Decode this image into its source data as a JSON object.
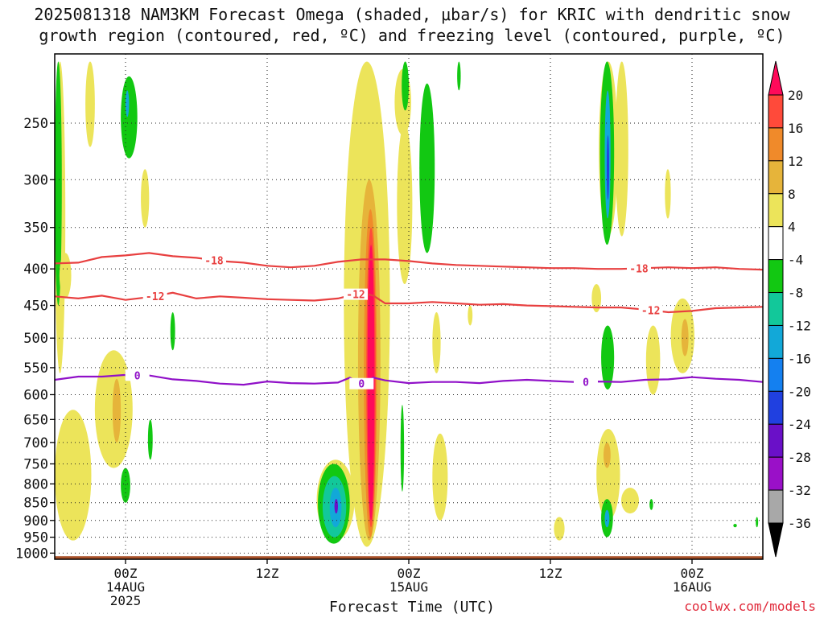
{
  "title_line1": "2025081318 NAM3KM Forecast Omega (shaded, μbar/s) for KRIC with dendritic snow",
  "title_line2": "growth region (contoured, red, ºC) and freezing level (contoured, purple, ºC)",
  "xlabel": "Forecast Time (UTC)",
  "credit": "coolwx.com/models",
  "chart_data": {
    "type": "heatmap",
    "title": "2025081318 NAM3KM Forecast Omega (shaded, μbar/s) for KRIC with dendritic snow growth region (contoured, red, ºC) and freezing level (contoured, purple, ºC)",
    "xlabel": "Forecast Time (UTC)",
    "ylabel": "",
    "x_unit": "forecast hour from 2025-08-13 18Z",
    "xlim": [
      0,
      60
    ],
    "ylim": [
      1020,
      200
    ],
    "y_scale": "log",
    "y_ticks": [
      250,
      300,
      350,
      400,
      450,
      500,
      550,
      600,
      650,
      700,
      750,
      800,
      850,
      900,
      950,
      1000
    ],
    "x_ticks": [
      {
        "hour": 6,
        "lines": [
          "00Z",
          "14AUG",
          "2025"
        ]
      },
      {
        "hour": 18,
        "lines": [
          "12Z"
        ]
      },
      {
        "hour": 30,
        "lines": [
          "00Z",
          "15AUG"
        ]
      },
      {
        "hour": 42,
        "lines": [
          "12Z"
        ]
      },
      {
        "hour": 54,
        "lines": [
          "00Z",
          "16AUG"
        ]
      }
    ],
    "grid": true,
    "colorbar": {
      "levels": [
        20,
        16,
        12,
        8,
        4,
        -4,
        -8,
        -12,
        -16,
        -20,
        -24,
        -28,
        -32,
        -36
      ],
      "colors": [
        "#ff0a5a",
        "#ff4a3a",
        "#f08a2a",
        "#e6b43a",
        "#ece45a",
        "#ffffff",
        "#12c812",
        "#12c89a",
        "#12a8d8",
        "#1480f0",
        "#2040e0",
        "#6a10c8",
        "#9a10c8",
        "#a8a8a8",
        "#000000"
      ]
    },
    "colors": {
      "dgz": "#e84040",
      "freezing": "#9010c8",
      "ground": "#a8522a",
      "yellow": "#ece45a",
      "gold": "#e6b43a",
      "orange": "#f08a2a",
      "red": "#ff4a3a",
      "magenta": "#ff0a5a",
      "green": "#12c812",
      "teal": "#12c89a",
      "cyan": "#12a8d8",
      "blue": "#1480f0",
      "navy": "#2040e0",
      "purple": "#6a10c8"
    },
    "contours": [
      {
        "name": "-18",
        "color": "#e84040",
        "label_at_hours": [
          13.5,
          49.5
        ],
        "x": [
          0,
          2,
          4,
          6,
          8,
          10,
          12,
          14,
          16,
          18,
          20,
          22,
          24,
          26,
          28,
          30,
          32,
          34,
          36,
          38,
          40,
          42,
          44,
          46,
          48,
          50,
          52,
          54,
          56,
          58,
          60
        ],
        "y": [
          393,
          392,
          385,
          383,
          380,
          384,
          386,
          390,
          392,
          396,
          398,
          396,
          391,
          388,
          388,
          390,
          393,
          395,
          396,
          397,
          398,
          399,
          399,
          400,
          400,
          399,
          398,
          399,
          398,
          400,
          401
        ]
      },
      {
        "name": "-12",
        "color": "#e84040",
        "label_at_hours": [
          8.5,
          25.5,
          50.5
        ],
        "x": [
          0,
          2,
          4,
          6,
          8,
          10,
          12,
          14,
          16,
          18,
          20,
          22,
          24,
          26,
          27,
          28,
          30,
          32,
          34,
          36,
          38,
          40,
          42,
          44,
          46,
          48,
          50,
          52,
          54,
          56,
          58,
          60
        ],
        "y": [
          437,
          440,
          436,
          442,
          438,
          432,
          440,
          437,
          439,
          441,
          442,
          443,
          440,
          432,
          436,
          447,
          447,
          445,
          447,
          449,
          448,
          450,
          451,
          452,
          453,
          453,
          456,
          460,
          458,
          454,
          453,
          452
        ]
      },
      {
        "name": "0",
        "color": "#9010c8",
        "label_at_hours": [
          7,
          26,
          45
        ],
        "x": [
          0,
          2,
          4,
          6,
          8,
          10,
          12,
          14,
          16,
          18,
          20,
          22,
          24,
          25,
          26,
          27,
          28,
          30,
          32,
          34,
          36,
          38,
          40,
          42,
          44,
          46,
          48,
          50,
          52,
          54,
          56,
          58,
          60
        ],
        "y": [
          572,
          566,
          566,
          563,
          564,
          571,
          574,
          579,
          581,
          575,
          578,
          579,
          577,
          568,
          579,
          568,
          573,
          578,
          576,
          576,
          578,
          574,
          572,
          574,
          576,
          575,
          576,
          572,
          571,
          567,
          570,
          572,
          576
        ]
      }
    ],
    "ground_level": 1010,
    "shaded_areas": [
      {
        "level": "yellow",
        "x": [
          0.0,
          0.9
        ],
        "p": [
          205,
          560
        ]
      },
      {
        "level": "green",
        "x": [
          0.0,
          0.6
        ],
        "p": [
          205,
          450
        ]
      },
      {
        "level": "yellow",
        "x": [
          2.6,
          3.4
        ],
        "p": [
          205,
          270
        ]
      },
      {
        "level": "green",
        "x": [
          5.6,
          7.0
        ],
        "p": [
          215,
          280
        ]
      },
      {
        "level": "cyan",
        "x": [
          6.0,
          6.3
        ],
        "p": [
          225,
          245
        ]
      },
      {
        "level": "yellow",
        "x": [
          7.3,
          8.0
        ],
        "p": [
          290,
          350
        ]
      },
      {
        "level": "yellow",
        "x": [
          0.4,
          1.4
        ],
        "p": [
          380,
          440
        ]
      },
      {
        "level": "green",
        "x": [
          9.8,
          10.2
        ],
        "p": [
          460,
          520
        ]
      },
      {
        "level": "yellow",
        "x": [
          3.4,
          6.6
        ],
        "p": [
          520,
          760
        ]
      },
      {
        "level": "gold",
        "x": [
          4.9,
          5.6
        ],
        "p": [
          570,
          700
        ]
      },
      {
        "level": "yellow",
        "x": [
          0.0,
          3.1
        ],
        "p": [
          630,
          960
        ]
      },
      {
        "level": "green",
        "x": [
          5.6,
          6.4
        ],
        "p": [
          760,
          850
        ]
      },
      {
        "level": "green",
        "x": [
          7.9,
          8.3
        ],
        "p": [
          650,
          740
        ]
      },
      {
        "level": "yellow",
        "x": [
          24.5,
          28.4
        ],
        "p": [
          205,
          980
        ]
      },
      {
        "level": "gold",
        "x": [
          25.7,
          27.6
        ],
        "p": [
          300,
          960
        ]
      },
      {
        "level": "orange",
        "x": [
          26.2,
          27.3
        ],
        "p": [
          330,
          950
        ]
      },
      {
        "level": "red",
        "x": [
          26.4,
          27.2
        ],
        "p": [
          350,
          920
        ]
      },
      {
        "level": "magenta",
        "x": [
          26.5,
          27.1
        ],
        "p": [
          370,
          900
        ]
      },
      {
        "level": "yellow",
        "x": [
          22.2,
          25.4
        ],
        "p": [
          740,
          960
        ]
      },
      {
        "level": "green",
        "x": [
          22.3,
          25.0
        ],
        "p": [
          750,
          970
        ]
      },
      {
        "level": "teal",
        "x": [
          22.7,
          24.7
        ],
        "p": [
          780,
          950
        ]
      },
      {
        "level": "cyan",
        "x": [
          23.3,
          24.3
        ],
        "p": [
          810,
          920
        ]
      },
      {
        "level": "purple",
        "x": [
          23.7,
          24.0
        ],
        "p": [
          840,
          880
        ]
      },
      {
        "level": "yellow",
        "x": [
          28.8,
          30.2
        ],
        "p": [
          210,
          260
        ]
      },
      {
        "level": "green",
        "x": [
          29.4,
          30.0
        ],
        "p": [
          205,
          240
        ]
      },
      {
        "level": "yellow",
        "x": [
          29.0,
          30.3
        ],
        "p": [
          250,
          420
        ]
      },
      {
        "level": "green",
        "x": [
          30.9,
          32.2
        ],
        "p": [
          220,
          380
        ]
      },
      {
        "level": "yellow",
        "x": [
          32.0,
          32.7
        ],
        "p": [
          460,
          560
        ]
      },
      {
        "level": "yellow",
        "x": [
          32.0,
          33.3
        ],
        "p": [
          680,
          900
        ]
      },
      {
        "level": "green",
        "x": [
          34.1,
          34.4
        ],
        "p": [
          205,
          225
        ]
      },
      {
        "level": "green",
        "x": [
          29.3,
          29.6
        ],
        "p": [
          620,
          820
        ]
      },
      {
        "level": "yellow",
        "x": [
          46.1,
          47.7
        ],
        "p": [
          205,
          360
        ]
      },
      {
        "level": "green",
        "x": [
          46.2,
          47.4
        ],
        "p": [
          205,
          370
        ]
      },
      {
        "level": "cyan",
        "x": [
          46.6,
          47.1
        ],
        "p": [
          225,
          340
        ]
      },
      {
        "level": "navy",
        "x": [
          46.8,
          46.95
        ],
        "p": [
          260,
          320
        ]
      },
      {
        "level": "yellow",
        "x": [
          47.5,
          48.6
        ],
        "p": [
          205,
          360
        ]
      },
      {
        "level": "green",
        "x": [
          46.3,
          47.4
        ],
        "p": [
          480,
          590
        ]
      },
      {
        "level": "yellow",
        "x": [
          50.1,
          51.3
        ],
        "p": [
          480,
          600
        ]
      },
      {
        "level": "yellow",
        "x": [
          52.2,
          54.2
        ],
        "p": [
          440,
          560
        ]
      },
      {
        "level": "gold",
        "x": [
          53.1,
          53.7
        ],
        "p": [
          470,
          530
        ]
      },
      {
        "level": "yellow",
        "x": [
          45.9,
          47.9
        ],
        "p": [
          670,
          900
        ]
      },
      {
        "level": "gold",
        "x": [
          46.5,
          47.1
        ],
        "p": [
          700,
          760
        ]
      },
      {
        "level": "green",
        "x": [
          46.3,
          47.3
        ],
        "p": [
          840,
          950
        ]
      },
      {
        "level": "cyan",
        "x": [
          46.6,
          47.0
        ],
        "p": [
          870,
          920
        ]
      },
      {
        "level": "yellow",
        "x": [
          42.3,
          43.2
        ],
        "p": [
          890,
          960
        ]
      },
      {
        "level": "yellow",
        "x": [
          48.0,
          49.5
        ],
        "p": [
          810,
          880
        ]
      },
      {
        "level": "green",
        "x": [
          50.4,
          50.7
        ],
        "p": [
          840,
          870
        ]
      },
      {
        "level": "green",
        "x": [
          57.5,
          57.8
        ],
        "p": [
          910,
          920
        ]
      },
      {
        "level": "green",
        "x": [
          59.4,
          59.6
        ],
        "p": [
          890,
          920
        ]
      },
      {
        "level": "yellow",
        "x": [
          51.7,
          52.2
        ],
        "p": [
          290,
          340
        ]
      },
      {
        "level": "yellow",
        "x": [
          45.5,
          46.3
        ],
        "p": [
          420,
          460
        ]
      },
      {
        "level": "yellow",
        "x": [
          35.0,
          35.4
        ],
        "p": [
          450,
          480
        ]
      }
    ]
  }
}
